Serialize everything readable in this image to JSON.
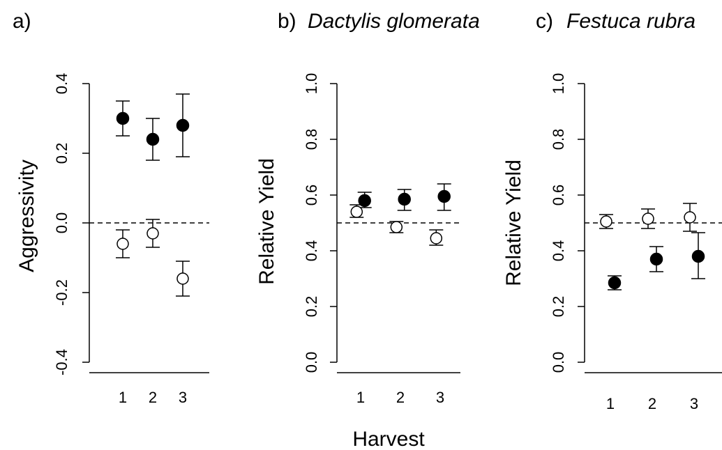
{
  "figure": {
    "xlabel": "Harvest"
  },
  "chart_data": [
    {
      "type": "scatter",
      "panel_label": "a)",
      "species": "",
      "ylabel": "Aggressivity",
      "ylim": [
        -0.45,
        0.52
      ],
      "yticks": [
        "-0.4",
        "-0.2",
        "0.0",
        "0.2",
        "0.4"
      ],
      "ytick_values": [
        -0.4,
        -0.2,
        0.0,
        0.2,
        0.4
      ],
      "xticks": [
        "1",
        "2",
        "3"
      ],
      "reference_line": 0.0,
      "series": [
        {
          "marker": "filled",
          "x": [
            1,
            2,
            3
          ],
          "y": [
            0.3,
            0.24,
            0.28
          ],
          "err_low": [
            0.25,
            0.18,
            0.19
          ],
          "err_high": [
            0.35,
            0.3,
            0.37
          ]
        },
        {
          "marker": "open",
          "x": [
            1,
            2,
            3
          ],
          "y": [
            -0.06,
            -0.03,
            -0.16
          ],
          "err_low": [
            -0.1,
            -0.07,
            -0.21
          ],
          "err_high": [
            -0.02,
            0.01,
            -0.11
          ]
        }
      ]
    },
    {
      "type": "scatter",
      "panel_label": "b)",
      "species": "Dactylis glomerata",
      "ylabel": "Relative Yield",
      "ylim": [
        -0.05,
        1.05
      ],
      "yticks": [
        "0.0",
        "0.2",
        "0.4",
        "0.6",
        "0.8",
        "1.0"
      ],
      "ytick_values": [
        0.0,
        0.2,
        0.4,
        0.6,
        0.8,
        1.0
      ],
      "xticks": [
        "1",
        "2",
        "3"
      ],
      "reference_line": 0.5,
      "series": [
        {
          "marker": "filled",
          "x": [
            1.1,
            2.1,
            3.1
          ],
          "y": [
            0.58,
            0.585,
            0.595
          ],
          "err_low": [
            0.555,
            0.545,
            0.545
          ],
          "err_high": [
            0.61,
            0.62,
            0.64
          ]
        },
        {
          "marker": "open",
          "x": [
            0.9,
            1.9,
            2.9
          ],
          "y": [
            0.54,
            0.485,
            0.445
          ],
          "err_low": [
            0.52,
            0.465,
            0.42
          ],
          "err_high": [
            0.565,
            0.505,
            0.475
          ]
        }
      ]
    },
    {
      "type": "scatter",
      "panel_label": "c)",
      "species": "Festuca rubra",
      "ylabel": "Relative Yield",
      "ylim": [
        -0.05,
        1.05
      ],
      "yticks": [
        "0.0",
        "0.2",
        "0.4",
        "0.6",
        "0.8",
        "1.0"
      ],
      "ytick_values": [
        0.0,
        0.2,
        0.4,
        0.6,
        0.8,
        1.0
      ],
      "xticks": [
        "1",
        "2",
        "3"
      ],
      "reference_line": 0.5,
      "series": [
        {
          "marker": "filled",
          "x": [
            1.1,
            2.1,
            3.1
          ],
          "y": [
            0.285,
            0.37,
            0.38
          ],
          "err_low": [
            0.26,
            0.325,
            0.3
          ],
          "err_high": [
            0.31,
            0.415,
            0.465
          ]
        },
        {
          "marker": "open",
          "x": [
            0.9,
            1.9,
            2.9
          ],
          "y": [
            0.505,
            0.515,
            0.52
          ],
          "err_low": [
            0.48,
            0.48,
            0.47
          ],
          "err_high": [
            0.53,
            0.55,
            0.57
          ]
        }
      ]
    }
  ]
}
